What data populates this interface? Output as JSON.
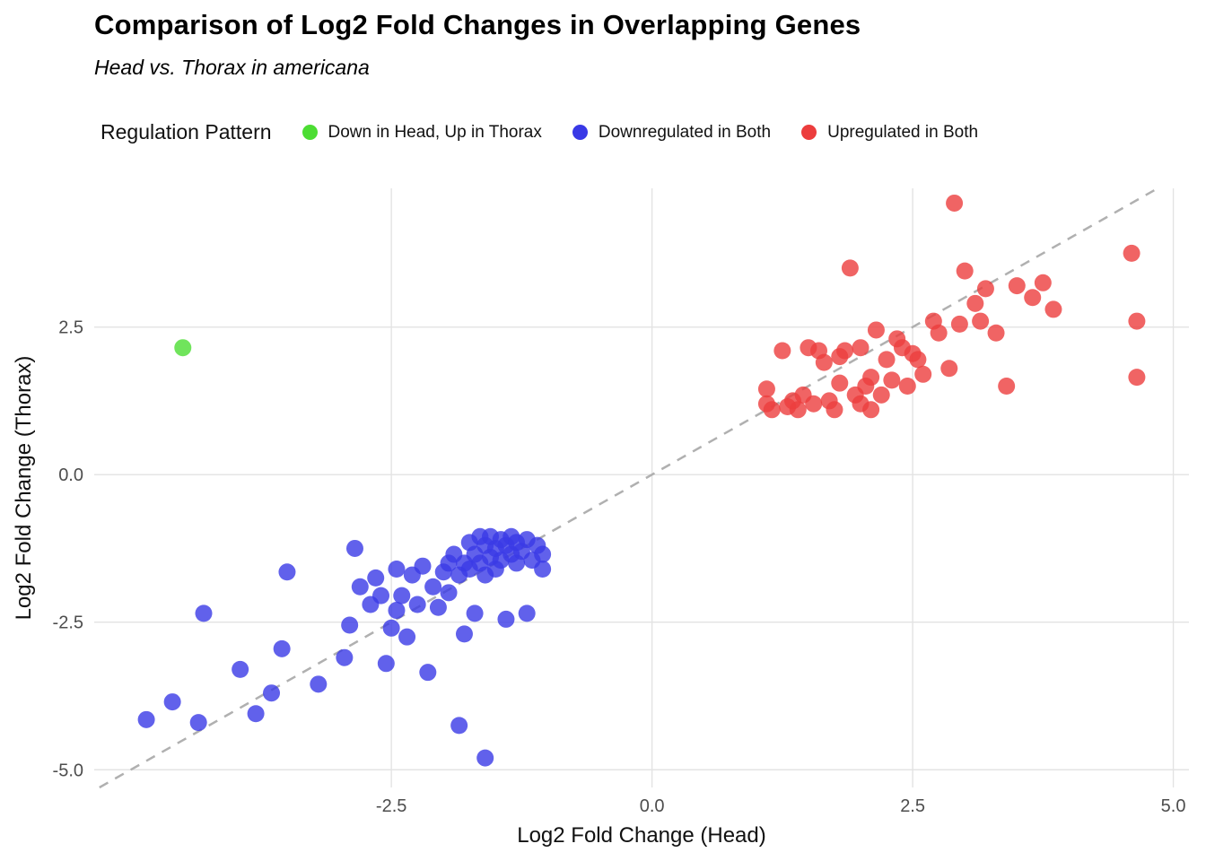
{
  "header": {
    "title": "Comparison of Log2 Fold Changes in Overlapping Genes",
    "subtitle": "Head vs. Thorax in americana"
  },
  "legend": {
    "title": "Regulation Pattern"
  },
  "axes": {
    "x_label": "Log2 Fold Change (Head)",
    "y_label": "Log2 Fold Change (Thorax)"
  },
  "chart_data": {
    "type": "scatter",
    "title": "Comparison of Log2 Fold Changes in Overlapping Genes",
    "subtitle": "Head vs. Thorax in americana",
    "xlabel": "Log2 Fold Change (Head)",
    "ylabel": "Log2 Fold Change (Thorax)",
    "xlim": [
      -5.35,
      5.15
    ],
    "ylim": [
      -5.3,
      4.85
    ],
    "xticks": [
      -2.5,
      0.0,
      2.5,
      5.0
    ],
    "yticks": [
      -5.0,
      -2.5,
      0.0,
      2.5
    ],
    "grid": true,
    "grid_color": "#e3e3e3",
    "legend_position": "top",
    "legend_title": "Regulation Pattern",
    "reference_line": {
      "type": "identity",
      "style": "dashed",
      "color": "#b0b0b0"
    },
    "point_radius": 9.5,
    "point_opacity": 0.8,
    "series": [
      {
        "name": "Down in Head, Up in Thorax",
        "color": "#4cdd33",
        "points": [
          [
            -4.5,
            2.15
          ]
        ]
      },
      {
        "name": "Downregulated in Both",
        "color": "#3939e6",
        "points": [
          [
            -4.85,
            -4.15
          ],
          [
            -4.6,
            -3.85
          ],
          [
            -4.35,
            -4.2
          ],
          [
            -4.3,
            -2.35
          ],
          [
            -3.95,
            -3.3
          ],
          [
            -3.8,
            -4.05
          ],
          [
            -3.65,
            -3.7
          ],
          [
            -3.55,
            -2.95
          ],
          [
            -3.5,
            -1.65
          ],
          [
            -3.2,
            -3.55
          ],
          [
            -2.95,
            -3.1
          ],
          [
            -2.9,
            -2.55
          ],
          [
            -2.85,
            -1.25
          ],
          [
            -2.8,
            -1.9
          ],
          [
            -2.7,
            -2.2
          ],
          [
            -2.65,
            -1.75
          ],
          [
            -2.6,
            -2.05
          ],
          [
            -2.55,
            -3.2
          ],
          [
            -2.5,
            -2.6
          ],
          [
            -2.45,
            -2.3
          ],
          [
            -2.45,
            -1.6
          ],
          [
            -2.4,
            -2.05
          ],
          [
            -2.35,
            -2.75
          ],
          [
            -2.3,
            -1.7
          ],
          [
            -2.25,
            -2.2
          ],
          [
            -2.2,
            -1.55
          ],
          [
            -2.15,
            -3.35
          ],
          [
            -2.1,
            -1.9
          ],
          [
            -2.05,
            -2.25
          ],
          [
            -2.0,
            -1.65
          ],
          [
            -1.95,
            -1.5
          ],
          [
            -1.95,
            -2.0
          ],
          [
            -1.9,
            -1.35
          ],
          [
            -1.85,
            -1.7
          ],
          [
            -1.85,
            -4.25
          ],
          [
            -1.8,
            -1.5
          ],
          [
            -1.8,
            -2.7
          ],
          [
            -1.75,
            -1.15
          ],
          [
            -1.75,
            -1.6
          ],
          [
            -1.7,
            -1.35
          ],
          [
            -1.7,
            -2.35
          ],
          [
            -1.65,
            -1.05
          ],
          [
            -1.65,
            -1.5
          ],
          [
            -1.6,
            -1.2
          ],
          [
            -1.6,
            -1.7
          ],
          [
            -1.6,
            -4.8
          ],
          [
            -1.55,
            -1.4
          ],
          [
            -1.55,
            -1.05
          ],
          [
            -1.5,
            -1.25
          ],
          [
            -1.5,
            -1.6
          ],
          [
            -1.45,
            -1.1
          ],
          [
            -1.45,
            -1.45
          ],
          [
            -1.4,
            -1.2
          ],
          [
            -1.4,
            -2.45
          ],
          [
            -1.35,
            -1.35
          ],
          [
            -1.35,
            -1.05
          ],
          [
            -1.3,
            -1.5
          ],
          [
            -1.3,
            -1.15
          ],
          [
            -1.25,
            -1.3
          ],
          [
            -1.2,
            -1.1
          ],
          [
            -1.2,
            -2.35
          ],
          [
            -1.15,
            -1.45
          ],
          [
            -1.1,
            -1.2
          ],
          [
            -1.05,
            -1.35
          ],
          [
            -1.05,
            -1.6
          ]
        ]
      },
      {
        "name": "Upregulated in Both",
        "color": "#ec3d3d",
        "points": [
          [
            1.1,
            1.2
          ],
          [
            1.1,
            1.45
          ],
          [
            1.15,
            1.1
          ],
          [
            1.25,
            2.1
          ],
          [
            1.3,
            1.15
          ],
          [
            1.35,
            1.25
          ],
          [
            1.4,
            1.1
          ],
          [
            1.45,
            1.35
          ],
          [
            1.5,
            2.15
          ],
          [
            1.55,
            1.2
          ],
          [
            1.6,
            2.1
          ],
          [
            1.65,
            1.9
          ],
          [
            1.7,
            1.25
          ],
          [
            1.75,
            1.1
          ],
          [
            1.8,
            2.0
          ],
          [
            1.8,
            1.55
          ],
          [
            1.85,
            2.1
          ],
          [
            1.9,
            3.5
          ],
          [
            1.95,
            1.35
          ],
          [
            2.0,
            2.15
          ],
          [
            2.0,
            1.2
          ],
          [
            2.05,
            1.5
          ],
          [
            2.1,
            1.65
          ],
          [
            2.1,
            1.1
          ],
          [
            2.15,
            2.45
          ],
          [
            2.2,
            1.35
          ],
          [
            2.25,
            1.95
          ],
          [
            2.3,
            1.6
          ],
          [
            2.35,
            2.3
          ],
          [
            2.4,
            2.15
          ],
          [
            2.45,
            1.5
          ],
          [
            2.5,
            2.05
          ],
          [
            2.55,
            1.95
          ],
          [
            2.6,
            1.7
          ],
          [
            2.7,
            2.6
          ],
          [
            2.75,
            2.4
          ],
          [
            2.85,
            1.8
          ],
          [
            2.9,
            4.6
          ],
          [
            2.95,
            2.55
          ],
          [
            3.0,
            3.45
          ],
          [
            3.1,
            2.9
          ],
          [
            3.15,
            2.6
          ],
          [
            3.2,
            3.15
          ],
          [
            3.3,
            2.4
          ],
          [
            3.4,
            1.5
          ],
          [
            3.5,
            3.2
          ],
          [
            3.65,
            3.0
          ],
          [
            3.75,
            3.25
          ],
          [
            3.85,
            2.8
          ],
          [
            4.6,
            3.75
          ],
          [
            4.65,
            2.6
          ],
          [
            4.65,
            1.65
          ]
        ]
      }
    ]
  }
}
